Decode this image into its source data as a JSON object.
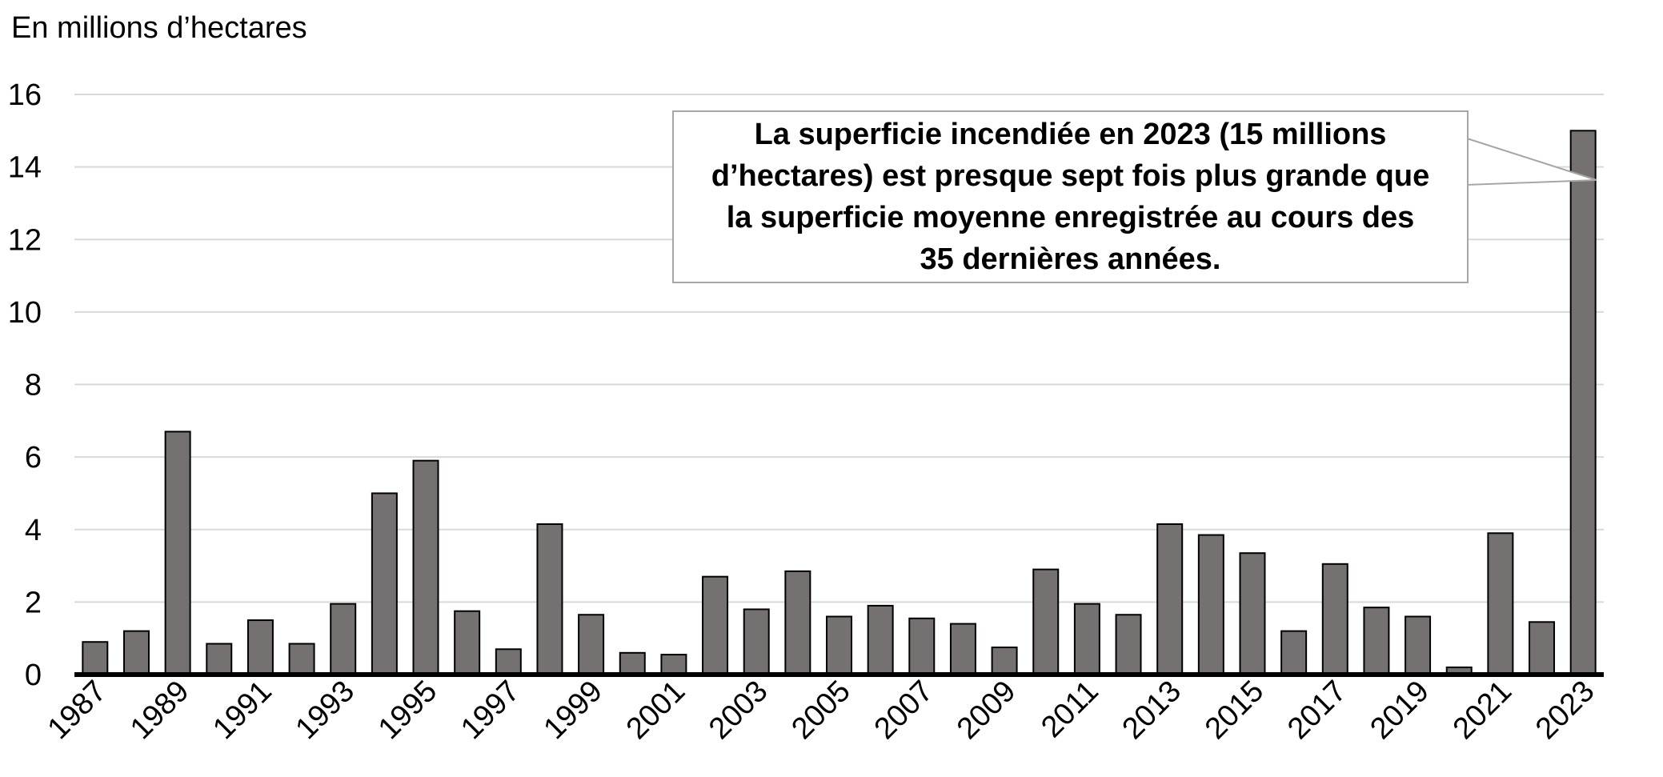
{
  "chart_data": {
    "type": "bar",
    "title": "",
    "ylabel": "En millions d’hectares",
    "xlabel": "",
    "ylim": [
      0,
      16
    ],
    "yticks": [
      0,
      2,
      4,
      6,
      8,
      10,
      12,
      14,
      16
    ],
    "grid": true,
    "categories": [
      "1987",
      "1988",
      "1989",
      "1990",
      "1991",
      "1992",
      "1993",
      "1994",
      "1995",
      "1996",
      "1997",
      "1998",
      "1999",
      "2000",
      "2001",
      "2002",
      "2003",
      "2004",
      "2005",
      "2006",
      "2007",
      "2008",
      "2009",
      "2010",
      "2011",
      "2012",
      "2013",
      "2014",
      "2015",
      "2016",
      "2017",
      "2018",
      "2019",
      "2020",
      "2021",
      "2022",
      "2023"
    ],
    "tick_labels": [
      "1987",
      "1989",
      "1991",
      "1993",
      "1995",
      "1997",
      "1999",
      "2001",
      "2003",
      "2005",
      "2007",
      "2009",
      "2011",
      "2013",
      "2015",
      "2017",
      "2019",
      "2021",
      "2023"
    ],
    "values": [
      0.9,
      1.2,
      6.7,
      0.85,
      1.5,
      0.85,
      1.95,
      5.0,
      5.9,
      1.75,
      0.7,
      4.15,
      1.65,
      0.6,
      0.55,
      2.7,
      1.8,
      2.85,
      1.6,
      1.9,
      1.55,
      1.4,
      0.75,
      2.9,
      1.95,
      1.65,
      4.15,
      3.85,
      3.35,
      1.2,
      3.05,
      1.85,
      1.6,
      0.2,
      3.9,
      1.45,
      15.0
    ],
    "bar_color": "#767171",
    "annotation": "La superficie incendiée en 2023 (15 millions d’hectares) est presque sept fois plus grande que la superficie moyenne enregistrée au cours des 35 dernières années."
  }
}
